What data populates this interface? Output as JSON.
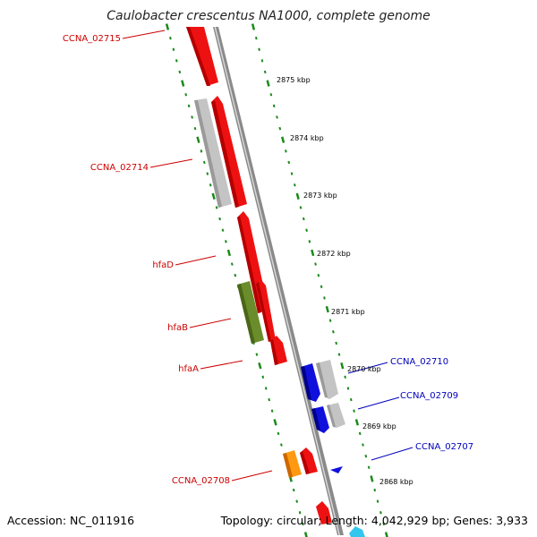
{
  "title": "Caulobacter crescentus NA1000, complete genome",
  "footer": {
    "accession": "Accession: NC_011916",
    "summary": "Topology: circular; Length: 4,042,929 bp; Genes: 3,933"
  },
  "colors": {
    "backbone": "#8a8a8a",
    "tick": "#1a8a1a",
    "label_forward": "#cc0000",
    "label_reverse": "#0000bb",
    "red_gene": "#ee1111",
    "gray_gene": "#c4c4c4",
    "green_gene": "#6a8c2a",
    "blue_gene": "#1010dd",
    "orange_gene": "#ff9911",
    "cyan_gene": "#33c6ee"
  },
  "scale_labels": [
    "2875 kbp",
    "2874 kbp",
    "2873 kbp",
    "2872 kbp",
    "2871 kbp",
    "2870 kbp",
    "2869 kbp",
    "2868 kbp"
  ],
  "gene_labels_left": [
    "CCNA_02715",
    "CCNA_02714",
    "hfaD",
    "hfaB",
    "hfaA",
    "CCNA_02708"
  ],
  "gene_labels_right": [
    "CCNA_02710",
    "CCNA_02709",
    "CCNA_02707"
  ]
}
